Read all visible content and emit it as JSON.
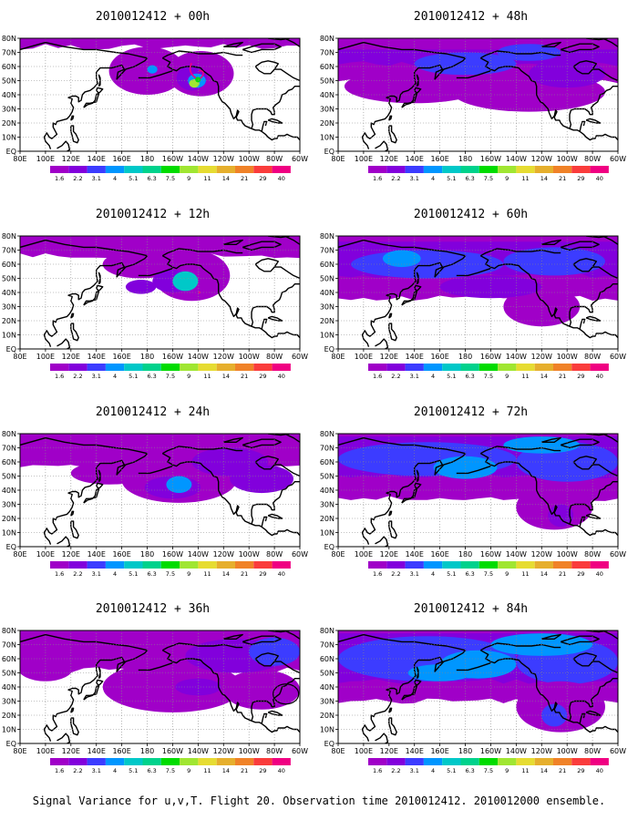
{
  "chart_data": {
    "type": "heatmap",
    "caption": "Signal Variance for u,v,T. Flight 20. Observation time 2010012412. 2010012000 ensemble.",
    "colorbar": {
      "labels": [
        "1.6",
        "2.2",
        "3.1",
        "4",
        "5.1",
        "6.3",
        "7.5",
        "9",
        "11",
        "14",
        "21",
        "29",
        "40"
      ],
      "colors": [
        "#a000c8",
        "#8200dc",
        "#3c3cff",
        "#0096ff",
        "#00c8c8",
        "#00d28c",
        "#00dc00",
        "#a0e632",
        "#e6dc32",
        "#e6af2d",
        "#f08228",
        "#fa3c3c",
        "#f00082"
      ]
    },
    "x_tick_labels": [
      "80E",
      "100E",
      "120E",
      "140E",
      "160E",
      "180",
      "160W",
      "140W",
      "120W",
      "100W",
      "80W",
      "60W"
    ],
    "y_tick_labels": [
      "EQ",
      "10N",
      "20N",
      "30N",
      "40N",
      "50N",
      "60N",
      "70N",
      "80N"
    ],
    "panels": [
      {
        "title": "2010012412 + 00h",
        "lead_hours": 0
      },
      {
        "title": "2010012412 + 12h",
        "lead_hours": 12
      },
      {
        "title": "2010012412 + 24h",
        "lead_hours": 24
      },
      {
        "title": "2010012412 + 36h",
        "lead_hours": 36
      },
      {
        "title": "2010012412 + 48h",
        "lead_hours": 48
      },
      {
        "title": "2010012412 + 60h",
        "lead_hours": 60
      },
      {
        "title": "2010012412 + 72h",
        "lead_hours": 72
      },
      {
        "title": "2010012412 + 84h",
        "lead_hours": 84
      }
    ]
  }
}
